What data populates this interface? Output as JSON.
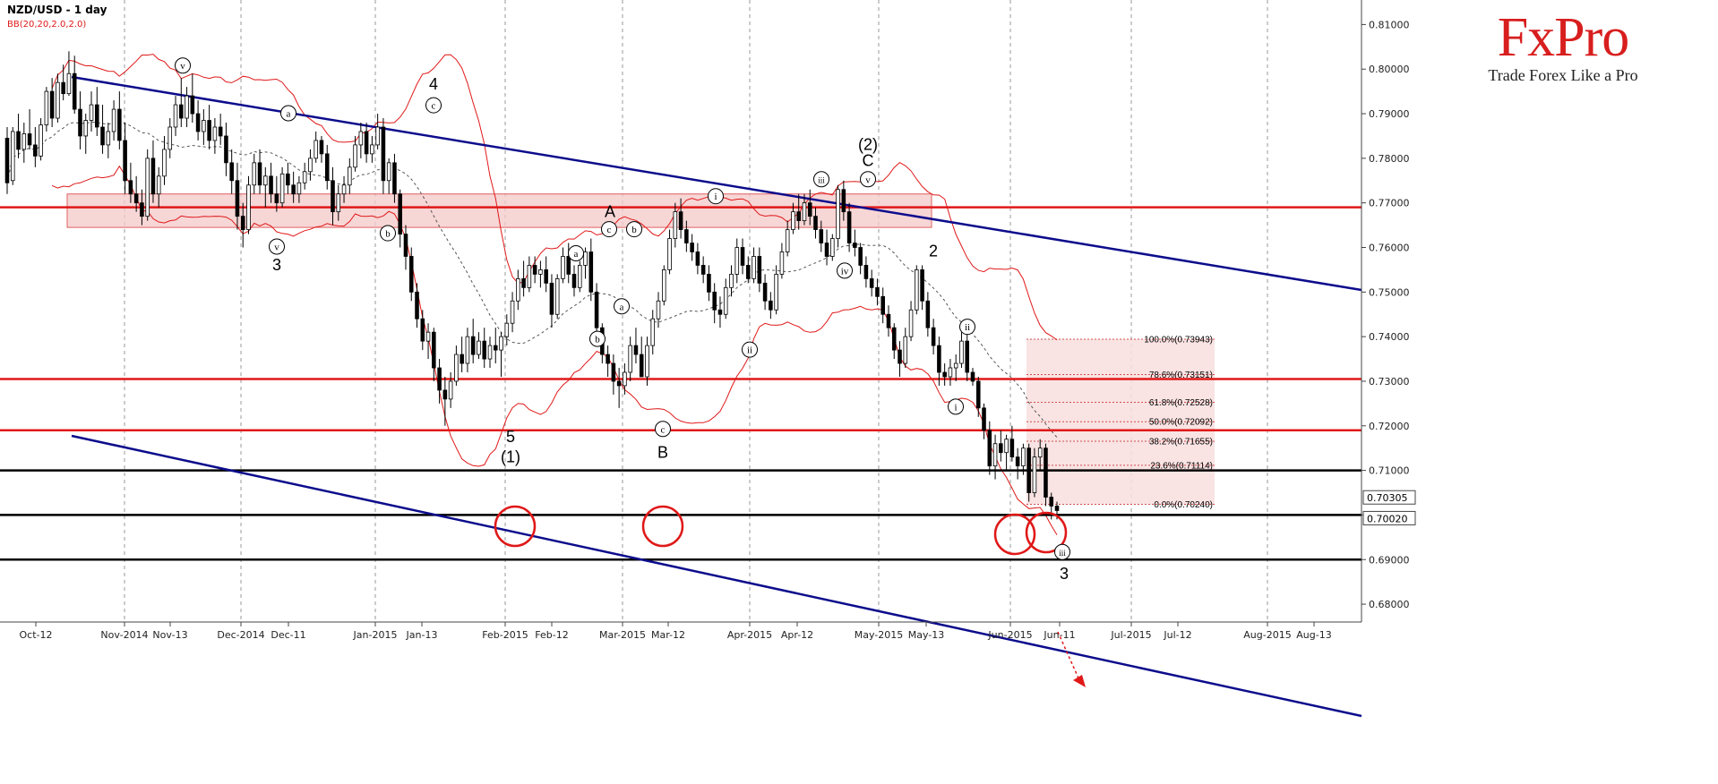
{
  "header": {
    "title": "NZD/USD - 1 day",
    "indicator": "BB(20,20,2.0,2.0)"
  },
  "brand": {
    "name": "FxPro",
    "tagline": "Trade Forex Like a Pro"
  },
  "colors": {
    "up": "#ffffff",
    "down": "#000000",
    "bands": "#e01818",
    "channel": "#0c0c8c",
    "resistance": "#e01818",
    "support": "#000000",
    "zone": "#f4c8c8",
    "fib": "#f8dede"
  },
  "chart_data": {
    "type": "candlestick",
    "instrument": "NZD/USD",
    "timeframe": "1 day",
    "x_ticks": [
      "Oct-12",
      "Nov-2014",
      "Nov-13",
      "Dec-2014",
      "Dec-11",
      "Jan-2015",
      "Jan-13",
      "Feb-2015",
      "Feb-12",
      "Mar-2015",
      "Mar-12",
      "Apr-2015",
      "Apr-12",
      "May-2015",
      "May-13",
      "Jun-2015",
      "Jun-11",
      "Jul-2015",
      "Jul-12",
      "Aug-2015",
      "Aug-13"
    ],
    "y_ticks": [
      "0.81000",
      "0.80000",
      "0.79000",
      "0.78000",
      "0.77000",
      "0.76000",
      "0.75000",
      "0.74000",
      "0.73000",
      "0.72000",
      "0.71000",
      "0.70000",
      "0.69000",
      "0.68000"
    ],
    "ylim": [
      0.676,
      0.8155
    ],
    "price_labels": [
      "0.70305",
      "0.70020"
    ],
    "horizontal_levels": [
      {
        "price": 0.769,
        "kind": "resistance"
      },
      {
        "price": 0.7305,
        "kind": "resistance"
      },
      {
        "price": 0.719,
        "kind": "resistance"
      },
      {
        "price": 0.71,
        "kind": "support"
      },
      {
        "price": 0.7,
        "kind": "support"
      },
      {
        "price": 0.69,
        "kind": "support"
      }
    ],
    "fibonacci": [
      {
        "label": "100.0%(0.73943)",
        "price": 0.73943
      },
      {
        "label": "78.6%(0.73151)",
        "price": 0.73151
      },
      {
        "label": "61.8%(0.72528)",
        "price": 0.72528
      },
      {
        "label": "50.0%(0.72092)",
        "price": 0.72092
      },
      {
        "label": "38.2%(0.71655)",
        "price": 0.71655
      },
      {
        "label": "23.6%(0.71114)",
        "price": 0.71114
      },
      {
        "label": "0.0%(0.70240)",
        "price": 0.7024
      }
    ],
    "wave_labels": [
      {
        "text": "v",
        "circled": true,
        "x": 204,
        "p": 0.8
      },
      {
        "text": "a",
        "circled": true,
        "x": 322,
        "p": 0.7893
      },
      {
        "text": "4",
        "circled": false,
        "x": 484,
        "p": 0.7958
      },
      {
        "text": "c",
        "circled": true,
        "x": 484,
        "p": 0.7911
      },
      {
        "text": "v",
        "circled": true,
        "x": 309,
        "p": 0.7594
      },
      {
        "text": "3",
        "circled": false,
        "x": 309,
        "p": 0.7553
      },
      {
        "text": "b",
        "circled": true,
        "x": 433,
        "p": 0.7624
      },
      {
        "text": "A",
        "circled": false,
        "x": 681,
        "p": 0.7672
      },
      {
        "text": "c",
        "circled": true,
        "x": 680,
        "p": 0.7633
      },
      {
        "text": "b",
        "circled": true,
        "x": 708,
        "p": 0.7633
      },
      {
        "text": "a",
        "circled": true,
        "x": 643,
        "p": 0.7579
      },
      {
        "text": "a",
        "circled": true,
        "x": 694,
        "p": 0.746
      },
      {
        "text": "b",
        "circled": true,
        "x": 667,
        "p": 0.7387
      },
      {
        "text": "5",
        "circled": false,
        "x": 570,
        "p": 0.7167
      },
      {
        "text": "(1)",
        "circled": false,
        "x": 570,
        "p": 0.7122
      },
      {
        "text": "c",
        "circled": true,
        "x": 740,
        "p": 0.7185
      },
      {
        "text": "B",
        "circled": false,
        "x": 740,
        "p": 0.7132
      },
      {
        "text": "i",
        "circled": true,
        "x": 799,
        "p": 0.7707
      },
      {
        "text": "ii",
        "circled": true,
        "x": 837,
        "p": 0.7363
      },
      {
        "text": "iii",
        "circled": true,
        "x": 917,
        "p": 0.7745
      },
      {
        "text": "(2)",
        "circled": false,
        "x": 969,
        "p": 0.7823
      },
      {
        "text": "C",
        "circled": false,
        "x": 969,
        "p": 0.7787
      },
      {
        "text": "v",
        "circled": true,
        "x": 969,
        "p": 0.7745
      },
      {
        "text": "iv",
        "circled": true,
        "x": 943,
        "p": 0.754
      },
      {
        "text": "2",
        "circled": false,
        "x": 1042,
        "p": 0.7584
      },
      {
        "text": "ii",
        "circled": true,
        "x": 1080,
        "p": 0.7414
      },
      {
        "text": "i",
        "circled": true,
        "x": 1067,
        "p": 0.7235
      },
      {
        "text": "iii",
        "circled": true,
        "x": 1186,
        "p": 0.6909
      },
      {
        "text": "3",
        "circled": false,
        "x": 1188,
        "p": 0.686
      }
    ],
    "candles": [
      [
        0.7845,
        0.787,
        0.772,
        0.7745
      ],
      [
        0.775,
        0.787,
        0.774,
        0.786
      ],
      [
        0.786,
        0.79,
        0.78,
        0.782
      ],
      [
        0.782,
        0.788,
        0.779,
        0.7855
      ],
      [
        0.7855,
        0.791,
        0.782,
        0.783
      ],
      [
        0.783,
        0.787,
        0.778,
        0.7805
      ],
      [
        0.7805,
        0.789,
        0.7795,
        0.7875
      ],
      [
        0.7875,
        0.796,
        0.786,
        0.795
      ],
      [
        0.795,
        0.798,
        0.787,
        0.789
      ],
      [
        0.789,
        0.799,
        0.788,
        0.797
      ],
      [
        0.797,
        0.801,
        0.793,
        0.7945
      ],
      [
        0.7945,
        0.804,
        0.794,
        0.799
      ],
      [
        0.799,
        0.803,
        0.79,
        0.791
      ],
      [
        0.791,
        0.795,
        0.782,
        0.785
      ],
      [
        0.785,
        0.79,
        0.781,
        0.7885
      ],
      [
        0.7885,
        0.795,
        0.786,
        0.792
      ],
      [
        0.792,
        0.796,
        0.785,
        0.787
      ],
      [
        0.787,
        0.792,
        0.781,
        0.783
      ],
      [
        0.783,
        0.788,
        0.78,
        0.786
      ],
      [
        0.786,
        0.793,
        0.784,
        0.791
      ],
      [
        0.791,
        0.795,
        0.782,
        0.784
      ],
      [
        0.784,
        0.788,
        0.772,
        0.775
      ],
      [
        0.775,
        0.779,
        0.77,
        0.772
      ],
      [
        0.772,
        0.776,
        0.768,
        0.77
      ],
      [
        0.77,
        0.773,
        0.765,
        0.767
      ],
      [
        0.767,
        0.782,
        0.766,
        0.78
      ],
      [
        0.78,
        0.784,
        0.77,
        0.772
      ],
      [
        0.772,
        0.778,
        0.769,
        0.776
      ],
      [
        0.776,
        0.785,
        0.774,
        0.782
      ],
      [
        0.782,
        0.789,
        0.78,
        0.787
      ],
      [
        0.787,
        0.794,
        0.785,
        0.792
      ],
      [
        0.792,
        0.798,
        0.787,
        0.789
      ],
      [
        0.789,
        0.796,
        0.787,
        0.794
      ],
      [
        0.794,
        0.799,
        0.788,
        0.79
      ],
      [
        0.79,
        0.793,
        0.784,
        0.786
      ],
      [
        0.786,
        0.791,
        0.783,
        0.7885
      ],
      [
        0.7885,
        0.792,
        0.782,
        0.784
      ],
      [
        0.784,
        0.789,
        0.781,
        0.787
      ],
      [
        0.787,
        0.79,
        0.783,
        0.785
      ],
      [
        0.785,
        0.788,
        0.776,
        0.779
      ],
      [
        0.779,
        0.782,
        0.772,
        0.775
      ],
      [
        0.775,
        0.779,
        0.764,
        0.767
      ],
      [
        0.767,
        0.77,
        0.76,
        0.764
      ],
      [
        0.764,
        0.776,
        0.763,
        0.774
      ],
      [
        0.774,
        0.781,
        0.772,
        0.779
      ],
      [
        0.779,
        0.782,
        0.772,
        0.774
      ],
      [
        0.774,
        0.778,
        0.769,
        0.776
      ],
      [
        0.776,
        0.779,
        0.77,
        0.772
      ],
      [
        0.772,
        0.776,
        0.768,
        0.77
      ],
      [
        0.77,
        0.778,
        0.769,
        0.7765
      ],
      [
        0.7765,
        0.779,
        0.772,
        0.774
      ],
      [
        0.774,
        0.777,
        0.77,
        0.772
      ],
      [
        0.772,
        0.776,
        0.77,
        0.7745
      ],
      [
        0.7745,
        0.779,
        0.773,
        0.777
      ],
      [
        0.777,
        0.782,
        0.775,
        0.78
      ],
      [
        0.78,
        0.786,
        0.779,
        0.784
      ],
      [
        0.784,
        0.785,
        0.779,
        0.781
      ],
      [
        0.781,
        0.783,
        0.773,
        0.775
      ],
      [
        0.775,
        0.778,
        0.765,
        0.768
      ],
      [
        0.768,
        0.774,
        0.766,
        0.772
      ],
      [
        0.772,
        0.776,
        0.77,
        0.774
      ],
      [
        0.774,
        0.78,
        0.772,
        0.778
      ],
      [
        0.778,
        0.785,
        0.777,
        0.783
      ],
      [
        0.783,
        0.788,
        0.78,
        0.786
      ],
      [
        0.786,
        0.788,
        0.779,
        0.781
      ],
      [
        0.781,
        0.785,
        0.779,
        0.783
      ],
      [
        0.783,
        0.79,
        0.782,
        0.787
      ],
      [
        0.787,
        0.789,
        0.772,
        0.775
      ],
      [
        0.775,
        0.78,
        0.772,
        0.779
      ],
      [
        0.779,
        0.781,
        0.77,
        0.772
      ],
      [
        0.772,
        0.773,
        0.76,
        0.763
      ],
      [
        0.763,
        0.765,
        0.755,
        0.758
      ],
      [
        0.758,
        0.76,
        0.748,
        0.75
      ],
      [
        0.75,
        0.752,
        0.742,
        0.744
      ],
      [
        0.744,
        0.746,
        0.737,
        0.739
      ],
      [
        0.739,
        0.743,
        0.735,
        0.741
      ],
      [
        0.741,
        0.742,
        0.73,
        0.733
      ],
      [
        0.733,
        0.735,
        0.725,
        0.728
      ],
      [
        0.728,
        0.731,
        0.72,
        0.726
      ],
      [
        0.726,
        0.732,
        0.724,
        0.73
      ],
      [
        0.73,
        0.738,
        0.729,
        0.736
      ],
      [
        0.736,
        0.74,
        0.732,
        0.734
      ],
      [
        0.734,
        0.742,
        0.732,
        0.74
      ],
      [
        0.74,
        0.744,
        0.734,
        0.736
      ],
      [
        0.736,
        0.741,
        0.735,
        0.739
      ],
      [
        0.739,
        0.742,
        0.733,
        0.735
      ],
      [
        0.735,
        0.74,
        0.733,
        0.738
      ],
      [
        0.738,
        0.742,
        0.734,
        0.737
      ],
      [
        0.737,
        0.741,
        0.731,
        0.74
      ],
      [
        0.74,
        0.745,
        0.738,
        0.743
      ],
      [
        0.743,
        0.75,
        0.741,
        0.748
      ],
      [
        0.748,
        0.755,
        0.746,
        0.753
      ],
      [
        0.753,
        0.757,
        0.749,
        0.751
      ],
      [
        0.751,
        0.758,
        0.75,
        0.756
      ],
      [
        0.756,
        0.758,
        0.752,
        0.754
      ],
      [
        0.754,
        0.757,
        0.751,
        0.755
      ],
      [
        0.755,
        0.758,
        0.75,
        0.752
      ],
      [
        0.752,
        0.754,
        0.742,
        0.745
      ],
      [
        0.745,
        0.754,
        0.744,
        0.753
      ],
      [
        0.753,
        0.76,
        0.752,
        0.758
      ],
      [
        0.758,
        0.761,
        0.752,
        0.754
      ],
      [
        0.754,
        0.756,
        0.749,
        0.751
      ],
      [
        0.751,
        0.757,
        0.75,
        0.756
      ],
      [
        0.756,
        0.76,
        0.753,
        0.759
      ],
      [
        0.759,
        0.762,
        0.748,
        0.75
      ],
      [
        0.75,
        0.752,
        0.739,
        0.742
      ],
      [
        0.742,
        0.743,
        0.734,
        0.736
      ],
      [
        0.736,
        0.738,
        0.731,
        0.734
      ],
      [
        0.734,
        0.736,
        0.727,
        0.73
      ],
      [
        0.73,
        0.733,
        0.724,
        0.729
      ],
      [
        0.729,
        0.734,
        0.727,
        0.732
      ],
      [
        0.732,
        0.74,
        0.73,
        0.738
      ],
      [
        0.738,
        0.742,
        0.734,
        0.736
      ],
      [
        0.736,
        0.74,
        0.732,
        0.731
      ],
      [
        0.731,
        0.74,
        0.729,
        0.738
      ],
      [
        0.738,
        0.746,
        0.736,
        0.744
      ],
      [
        0.744,
        0.75,
        0.742,
        0.748
      ],
      [
        0.748,
        0.756,
        0.747,
        0.755
      ],
      [
        0.755,
        0.764,
        0.754,
        0.762
      ],
      [
        0.762,
        0.77,
        0.76,
        0.768
      ],
      [
        0.768,
        0.771,
        0.762,
        0.764
      ],
      [
        0.764,
        0.766,
        0.759,
        0.761
      ],
      [
        0.761,
        0.763,
        0.757,
        0.759
      ],
      [
        0.759,
        0.761,
        0.754,
        0.756
      ],
      [
        0.756,
        0.758,
        0.752,
        0.754
      ],
      [
        0.754,
        0.756,
        0.748,
        0.75
      ],
      [
        0.75,
        0.752,
        0.743,
        0.746
      ],
      [
        0.746,
        0.749,
        0.742,
        0.745
      ],
      [
        0.745,
        0.753,
        0.744,
        0.751
      ],
      [
        0.751,
        0.756,
        0.749,
        0.754
      ],
      [
        0.754,
        0.762,
        0.752,
        0.76
      ],
      [
        0.76,
        0.762,
        0.754,
        0.756
      ],
      [
        0.756,
        0.758,
        0.752,
        0.753
      ],
      [
        0.753,
        0.76,
        0.752,
        0.758
      ],
      [
        0.758,
        0.76,
        0.75,
        0.752
      ],
      [
        0.752,
        0.754,
        0.746,
        0.748
      ],
      [
        0.748,
        0.75,
        0.744,
        0.746
      ],
      [
        0.746,
        0.756,
        0.745,
        0.754
      ],
      [
        0.754,
        0.761,
        0.753,
        0.759
      ],
      [
        0.759,
        0.766,
        0.758,
        0.764
      ],
      [
        0.764,
        0.77,
        0.763,
        0.768
      ],
      [
        0.768,
        0.772,
        0.764,
        0.766
      ],
      [
        0.766,
        0.772,
        0.765,
        0.77
      ],
      [
        0.77,
        0.773,
        0.765,
        0.767
      ],
      [
        0.767,
        0.769,
        0.762,
        0.764
      ],
      [
        0.764,
        0.766,
        0.759,
        0.761
      ],
      [
        0.761,
        0.764,
        0.756,
        0.758
      ],
      [
        0.758,
        0.763,
        0.757,
        0.762
      ],
      [
        0.762,
        0.774,
        0.76,
        0.773
      ],
      [
        0.773,
        0.775,
        0.766,
        0.768
      ],
      [
        0.768,
        0.77,
        0.759,
        0.761
      ],
      [
        0.761,
        0.764,
        0.758,
        0.76
      ],
      [
        0.76,
        0.761,
        0.754,
        0.756
      ],
      [
        0.756,
        0.758,
        0.751,
        0.753
      ],
      [
        0.753,
        0.755,
        0.749,
        0.751
      ],
      [
        0.751,
        0.753,
        0.747,
        0.749
      ],
      [
        0.749,
        0.751,
        0.743,
        0.745
      ],
      [
        0.745,
        0.747,
        0.74,
        0.742
      ],
      [
        0.742,
        0.743,
        0.735,
        0.737
      ],
      [
        0.737,
        0.739,
        0.731,
        0.734
      ],
      [
        0.734,
        0.742,
        0.733,
        0.74
      ],
      [
        0.74,
        0.748,
        0.739,
        0.746
      ],
      [
        0.746,
        0.756,
        0.745,
        0.755
      ],
      [
        0.755,
        0.756,
        0.746,
        0.748
      ],
      [
        0.748,
        0.75,
        0.74,
        0.742
      ],
      [
        0.742,
        0.744,
        0.736,
        0.738
      ],
      [
        0.738,
        0.74,
        0.729,
        0.732
      ],
      [
        0.732,
        0.734,
        0.729,
        0.731
      ],
      [
        0.731,
        0.735,
        0.729,
        0.733
      ],
      [
        0.733,
        0.736,
        0.73,
        0.734
      ],
      [
        0.734,
        0.741,
        0.733,
        0.739
      ],
      [
        0.739,
        0.741,
        0.73,
        0.732
      ],
      [
        0.732,
        0.733,
        0.729,
        0.73
      ],
      [
        0.73,
        0.731,
        0.722,
        0.724
      ],
      [
        0.724,
        0.725,
        0.717,
        0.719
      ],
      [
        0.719,
        0.721,
        0.709,
        0.711
      ],
      [
        0.711,
        0.718,
        0.708,
        0.716
      ],
      [
        0.716,
        0.719,
        0.712,
        0.714
      ],
      [
        0.714,
        0.718,
        0.71,
        0.717
      ],
      [
        0.717,
        0.72,
        0.712,
        0.713
      ],
      [
        0.713,
        0.715,
        0.708,
        0.711
      ],
      [
        0.711,
        0.716,
        0.709,
        0.715
      ],
      [
        0.715,
        0.716,
        0.703,
        0.705
      ],
      [
        0.705,
        0.715,
        0.704,
        0.713
      ],
      [
        0.713,
        0.717,
        0.71,
        0.715
      ],
      [
        0.715,
        0.716,
        0.702,
        0.704
      ],
      [
        0.704,
        0.705,
        0.699,
        0.702
      ],
      [
        0.702,
        0.703,
        0.699,
        0.701
      ]
    ]
  }
}
